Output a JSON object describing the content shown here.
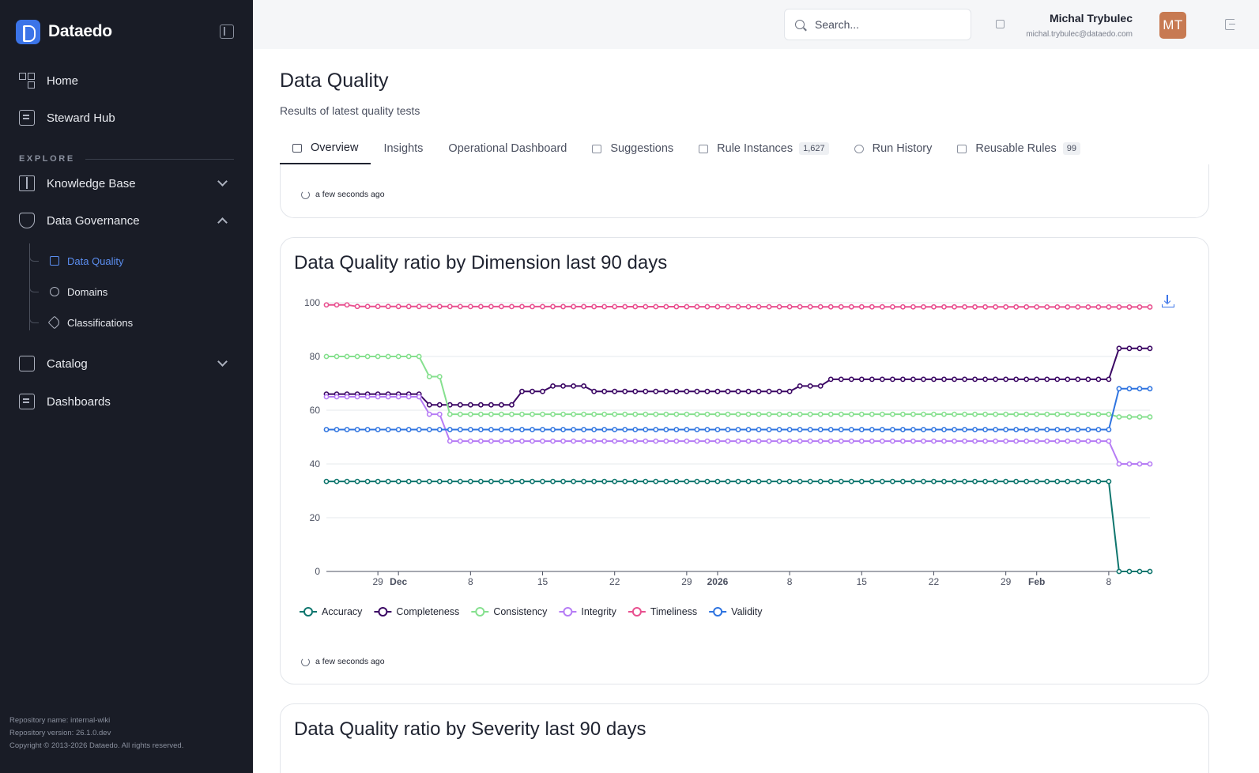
{
  "app": {
    "name": "Dataedo"
  },
  "sidebar": {
    "home": "Home",
    "steward_hub": "Steward Hub",
    "section_explore": "EXPLORE",
    "knowledge_base": "Knowledge Base",
    "data_governance": "Data Governance",
    "sub_items": [
      "Data Quality",
      "Domains",
      "Classifications"
    ],
    "catalog": "Catalog",
    "dashboards": "Dashboards",
    "footer": {
      "repo_name": "Repository name: internal-wiki",
      "repo_version": "Repository version: 26.1.0.dev",
      "copyright": "Copyright © 2013-2026 Dataedo. All rights reserved."
    }
  },
  "topbar": {
    "search_placeholder": "Search...",
    "user_name": "Michal Trybulec",
    "user_email": "michal.trybulec@dataedo.com",
    "avatar_initials": "MT"
  },
  "page": {
    "title": "Data Quality",
    "subtitle": "Results of latest quality tests",
    "tabs": [
      {
        "label": "Overview",
        "badge": ""
      },
      {
        "label": "Insights",
        "badge": ""
      },
      {
        "label": "Operational Dashboard",
        "badge": ""
      },
      {
        "label": "Suggestions",
        "badge": ""
      },
      {
        "label": "Rule Instances",
        "badge": "1,627"
      },
      {
        "label": "Run History",
        "badge": ""
      },
      {
        "label": "Reusable Rules",
        "badge": "99"
      }
    ],
    "refresh_text": "a few seconds ago",
    "chart_title": "Data Quality ratio by Dimension last 90 days",
    "next_chart_title": "Data Quality ratio by Severity last 90 days"
  },
  "chart_data": {
    "type": "line",
    "title": "Data Quality ratio by Dimension last 90 days",
    "ylim": [
      0,
      100
    ],
    "y_ticks": [
      0,
      20,
      40,
      60,
      80,
      100
    ],
    "x_ticks": [
      {
        "label": "29",
        "bold": false,
        "index": 5
      },
      {
        "label": "Dec",
        "bold": true,
        "index": 7
      },
      {
        "label": "8",
        "bold": false,
        "index": 14
      },
      {
        "label": "15",
        "bold": false,
        "index": 21
      },
      {
        "label": "22",
        "bold": false,
        "index": 28
      },
      {
        "label": "29",
        "bold": false,
        "index": 35
      },
      {
        "label": "2026",
        "bold": true,
        "index": 38
      },
      {
        "label": "8",
        "bold": false,
        "index": 45
      },
      {
        "label": "15",
        "bold": false,
        "index": 52
      },
      {
        "label": "22",
        "bold": false,
        "index": 59
      },
      {
        "label": "29",
        "bold": false,
        "index": 66
      },
      {
        "label": "Feb",
        "bold": true,
        "index": 69
      },
      {
        "label": "8",
        "bold": false,
        "index": 76
      }
    ],
    "num_points": 81,
    "series": [
      {
        "name": "Accuracy",
        "color": "#0f766e",
        "segments": [
          [
            0,
            33.5
          ],
          [
            76,
            33.5
          ],
          [
            77,
            0
          ],
          [
            80,
            0
          ]
        ]
      },
      {
        "name": "Completeness",
        "color": "#3b0764",
        "segments": [
          [
            0,
            66
          ],
          [
            9,
            66
          ],
          [
            10,
            62
          ],
          [
            18,
            62
          ],
          [
            19,
            67
          ],
          [
            21,
            67
          ],
          [
            22,
            69
          ],
          [
            25,
            69
          ],
          [
            26,
            67
          ],
          [
            45,
            67
          ],
          [
            46,
            69
          ],
          [
            48,
            69
          ],
          [
            49,
            71.5
          ],
          [
            76,
            71.5
          ],
          [
            77,
            83
          ],
          [
            80,
            83
          ]
        ]
      },
      {
        "name": "Consistency",
        "color": "#86e08f",
        "segments": [
          [
            0,
            80
          ],
          [
            9,
            80
          ],
          [
            10,
            72.5
          ],
          [
            11,
            72.5
          ],
          [
            12,
            58.5
          ],
          [
            76,
            58.5
          ],
          [
            77,
            57.5
          ],
          [
            80,
            57.5
          ]
        ]
      },
      {
        "name": "Integrity",
        "color": "#b67cf5",
        "segments": [
          [
            0,
            65
          ],
          [
            9,
            65
          ],
          [
            10,
            58.5
          ],
          [
            11,
            58.5
          ],
          [
            12,
            48.5
          ],
          [
            76,
            48.5
          ],
          [
            77,
            40
          ],
          [
            80,
            40
          ]
        ]
      },
      {
        "name": "Timeliness",
        "color": "#e8508f",
        "segments": [
          [
            0,
            99.2
          ],
          [
            2,
            99.2
          ],
          [
            3,
            98.6
          ],
          [
            80,
            98.4
          ]
        ]
      },
      {
        "name": "Validity",
        "color": "#2f74e0",
        "segments": [
          [
            0,
            52.8
          ],
          [
            76,
            52.8
          ],
          [
            77,
            68
          ],
          [
            80,
            68
          ]
        ]
      }
    ]
  }
}
